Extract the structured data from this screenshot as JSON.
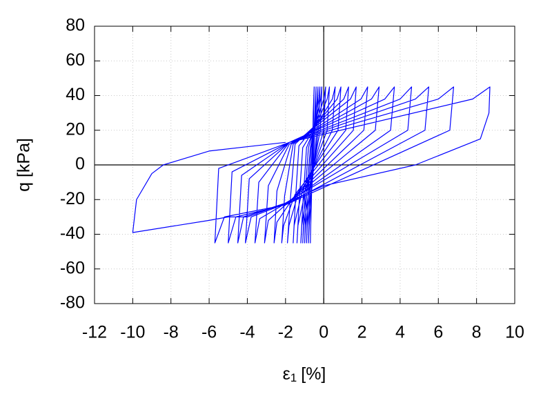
{
  "chart_data": {
    "type": "line",
    "xlabel": {
      "symbol": "ε",
      "subscript": "1",
      "unit": "[%]"
    },
    "ylabel": "q [kPa]",
    "xlim": [
      -12,
      10
    ],
    "xticks": [
      -12,
      -10,
      -8,
      -6,
      -4,
      -2,
      0,
      2,
      4,
      6,
      8,
      10
    ],
    "ylim": [
      -80,
      80
    ],
    "yticks": [
      -80,
      -60,
      -40,
      -20,
      0,
      20,
      40,
      60,
      80
    ],
    "grid": true,
    "zero_axes": true,
    "x": [
      -0.6,
      -0.55,
      -0.5,
      -0.55,
      -0.62,
      -0.68,
      -0.7,
      -0.65,
      -0.55,
      -0.43,
      -0.4,
      -0.45,
      -0.6,
      -0.76,
      -0.8,
      -0.74,
      -0.6,
      -0.34,
      -0.3,
      -0.35,
      -0.6,
      -0.86,
      -0.9,
      -0.83,
      -0.65,
      -0.25,
      -0.2,
      -0.27,
      -0.65,
      -0.95,
      -1.0,
      -0.92,
      -0.7,
      -0.16,
      -0.1,
      -0.18,
      -0.7,
      -1.05,
      -1.1,
      -1.0,
      -0.8,
      0.0,
      0.1,
      0.0,
      -0.8,
      -1.15,
      -1.2,
      -1.08,
      -0.9,
      0.18,
      0.3,
      0.18,
      -0.9,
      -1.35,
      -1.4,
      -1.28,
      -1.1,
      0.45,
      0.6,
      0.45,
      -1.1,
      -1.55,
      -1.6,
      -1.48,
      -1.3,
      0.7,
      0.9,
      0.75,
      -1.3,
      -1.82,
      -1.9,
      -1.75,
      -1.5,
      1.05,
      1.3,
      1.15,
      -1.5,
      -2.1,
      -2.2,
      -2.05,
      -1.6,
      1.4,
      1.7,
      1.55,
      -1.6,
      -2.45,
      -2.6,
      -2.45,
      -1.7,
      1.95,
      2.3,
      2.1,
      -1.7,
      -2.9,
      -3.1,
      -2.9,
      -1.8,
      2.5,
      2.9,
      2.7,
      -1.8,
      -3.35,
      -3.6,
      -3.4,
      -1.8,
      3.2,
      3.7,
      3.5,
      -1.9,
      -3.8,
      -4.1,
      -3.9,
      -1.8,
      4.0,
      4.6,
      4.4,
      -2.0,
      -4.2,
      -4.5,
      -4.3,
      -1.8,
      4.8,
      5.5,
      5.3,
      -2.0,
      -4.6,
      -5.0,
      -4.8,
      -1.8,
      6.0,
      6.8,
      6.6,
      -2.0,
      -5.2,
      -5.7,
      -5.5,
      -1.8,
      7.8,
      8.7,
      8.65,
      8.2,
      4.8,
      0,
      -2,
      -4,
      -5,
      -6,
      -10,
      -9.8,
      -9,
      -8.4,
      -6,
      -2
    ],
    "series": [
      {
        "color": "#0000ff",
        "values": [
          0,
          30,
          45,
          20,
          -10,
          -35,
          -45,
          -20,
          10,
          38,
          45,
          20,
          -10,
          -35,
          -45,
          -20,
          10,
          38,
          45,
          20,
          -10,
          -35,
          -45,
          -20,
          10,
          38,
          45,
          20,
          -10,
          -35,
          -45,
          -20,
          10,
          38,
          45,
          20,
          -10,
          -35,
          -45,
          -20,
          10,
          38,
          45,
          20,
          -10,
          -35,
          -45,
          -20,
          10,
          38,
          45,
          20,
          -12,
          -35,
          -45,
          -20,
          10,
          38,
          45,
          20,
          -14,
          -35,
          -45,
          -20,
          11,
          38,
          45,
          20,
          -15,
          -35,
          -45,
          -20,
          12,
          38,
          45,
          20,
          -17,
          -35,
          -45,
          -18,
          12,
          38,
          45,
          20,
          -19,
          -33,
          -45,
          -15,
          12,
          38,
          45,
          20,
          -20,
          -32,
          -45,
          -12,
          12,
          38,
          45,
          20,
          -21,
          -31,
          -45,
          -10,
          13,
          38,
          45,
          20,
          -22,
          -30,
          -45,
          -8,
          13,
          38,
          45,
          20,
          -22,
          -30,
          -45,
          -6,
          13,
          38,
          45,
          20,
          -23,
          -30,
          -45,
          -4,
          13,
          38,
          45,
          20,
          -23,
          -30,
          -45,
          -2,
          13,
          38,
          45,
          30,
          15,
          0,
          -12,
          -22,
          -30,
          -30,
          -32,
          -39,
          -20,
          -5,
          0,
          8,
          13
        ]
      }
    ]
  }
}
